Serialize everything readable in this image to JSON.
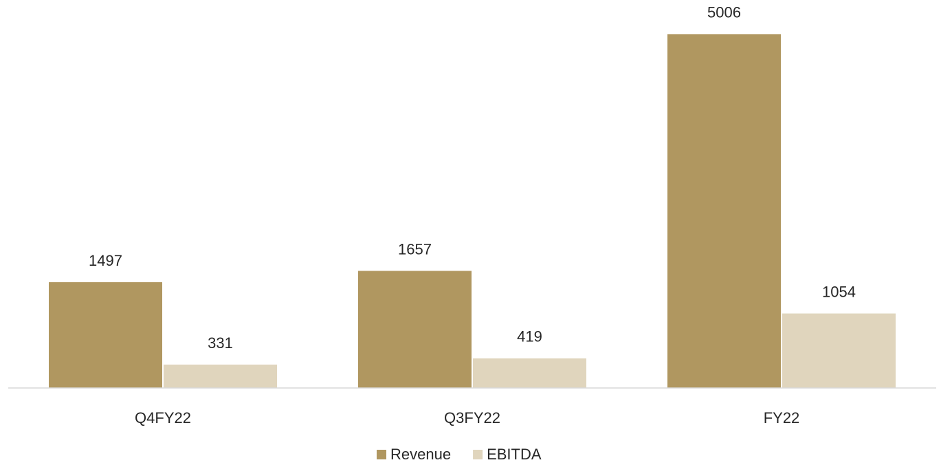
{
  "chart_data": {
    "type": "bar",
    "categories": [
      "Q4FY22",
      "Q3FY22",
      "FY22"
    ],
    "series": [
      {
        "name": "Revenue",
        "color": "#b09760",
        "values": [
          1497,
          1657,
          5006
        ]
      },
      {
        "name": "EBITDA",
        "color": "#e0d5bd",
        "values": [
          331,
          419,
          1054
        ]
      }
    ],
    "ylim": [
      0,
      5000
    ],
    "legend": "bottom"
  }
}
